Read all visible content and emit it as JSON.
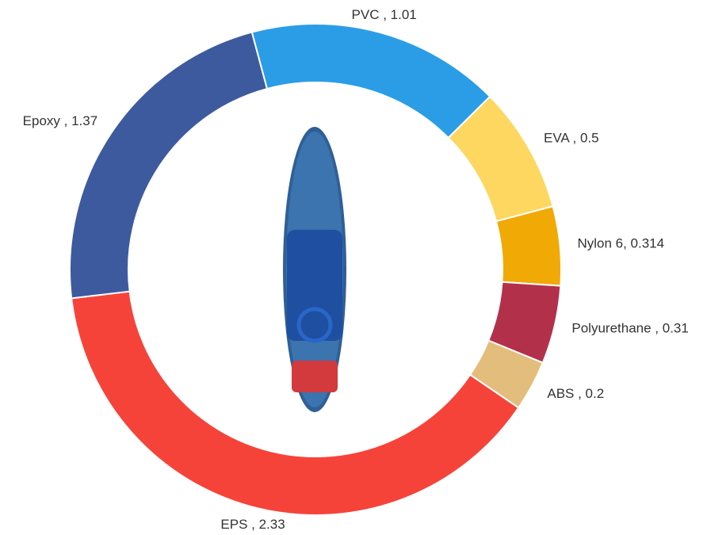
{
  "chart_data": {
    "type": "donut",
    "values": [
      1.01,
      0.5,
      0.314,
      0.31,
      0.2,
      2.33,
      1.37
    ],
    "value_labels": [
      "PVC , 1.01",
      "EVA , 0.5",
      "Nylon 6, 0.314",
      "Polyurethane , 0.31",
      "ABS , 0.2",
      "EPS , 2.33",
      "Epoxy , 1.37"
    ],
    "colors": [
      "#2b9de6",
      "#fdd760",
      "#f1a905",
      "#b3304b",
      "#e3bd7b",
      "#f6433a",
      "#3e5a9f"
    ]
  }
}
